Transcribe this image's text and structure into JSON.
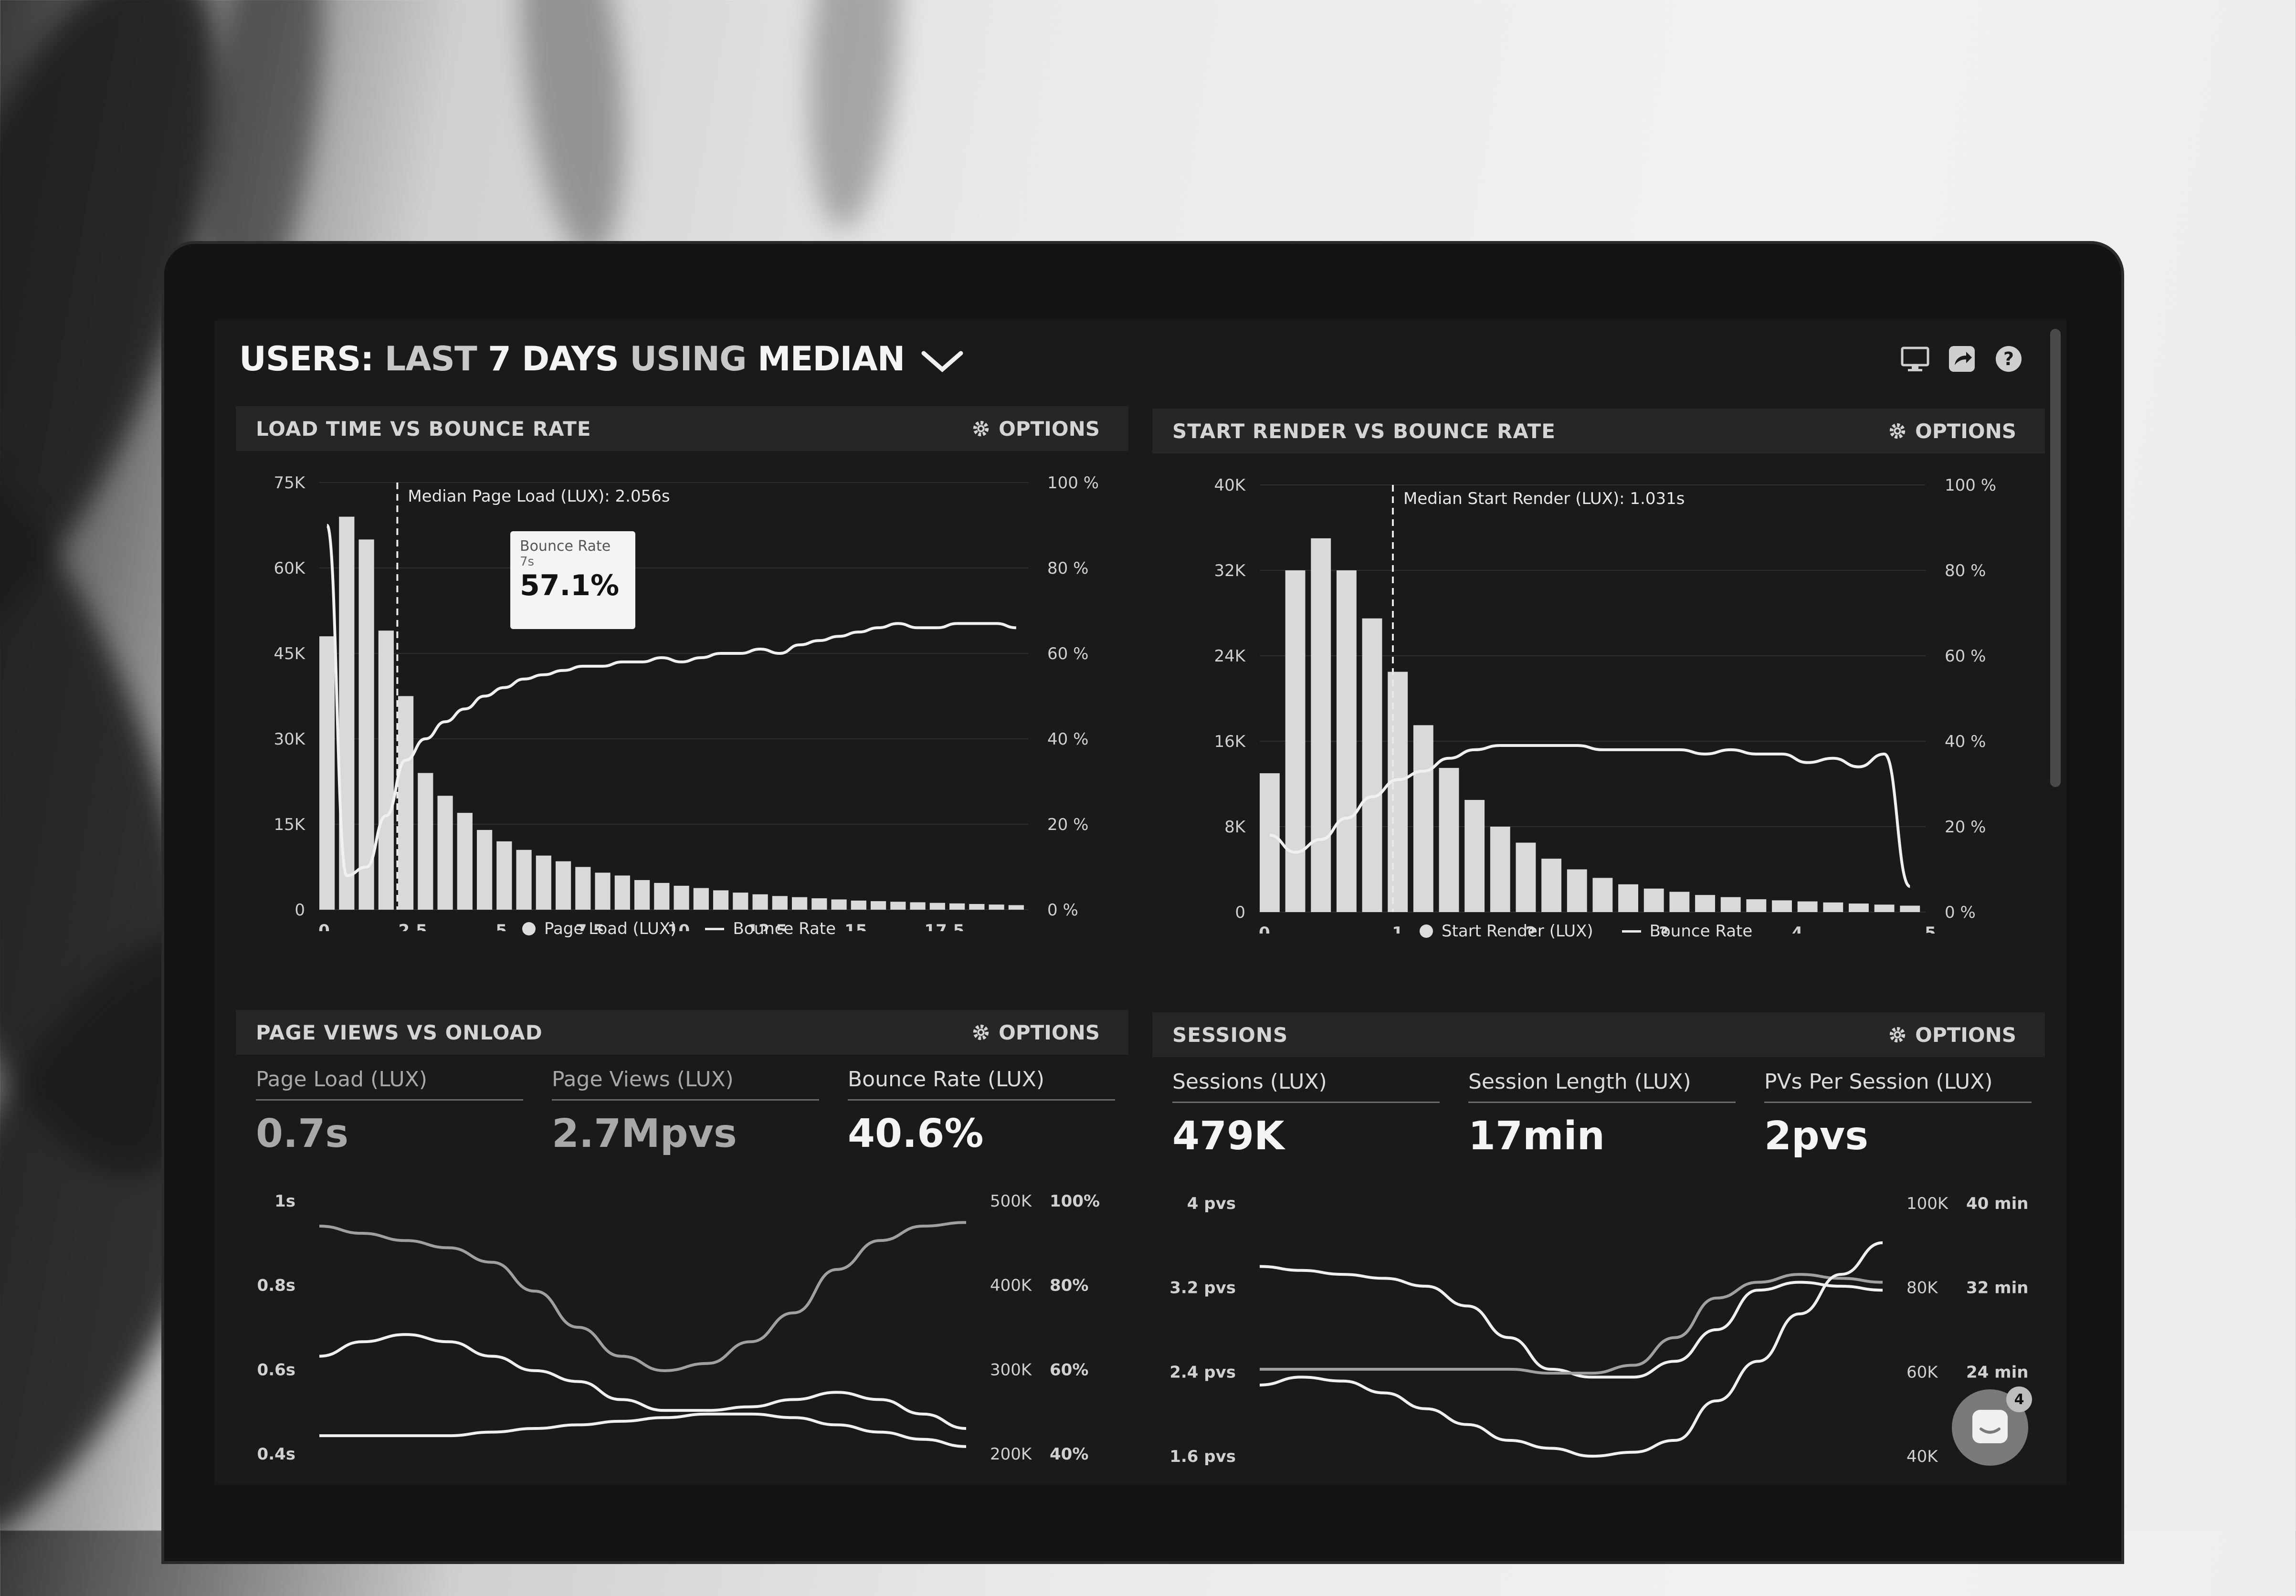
{
  "header": {
    "title_users": "USERS:",
    "title_last": "LAST",
    "title_days": "7 DAYS",
    "title_using": "USING",
    "title_median": "MEDIAN"
  },
  "icons": [
    "monitor-icon",
    "share-icon",
    "help-icon",
    "gear-icon",
    "chevron-down-icon",
    "chat-icon"
  ],
  "colors": {
    "screen_bg": "#1a1a1a",
    "panel_header": "#262626",
    "bar": "#d9d9d9",
    "line": "#f0f0f0",
    "muted_line": "#a0a0a0"
  },
  "options_label": "OPTIONS",
  "panels": {
    "load": {
      "title": "LOAD TIME VS BOUNCE RATE",
      "median_label": "Median Page Load (LUX): 2.056s",
      "legend_a": "Page Load (LUX)",
      "legend_b": "Bounce Rate",
      "y_left": [
        "75K",
        "60K",
        "45K",
        "30K",
        "15K",
        "0"
      ],
      "y_right": [
        "100 %",
        "80 %",
        "60 %",
        "40 %",
        "20 %",
        "0 %"
      ],
      "x_labels": [
        "0",
        "2.5",
        "5",
        "7.5",
        "10",
        "12.5",
        "15",
        "17.5"
      ],
      "tooltip": {
        "title": "Bounce Rate",
        "sub": "7s",
        "value": "57.1%"
      }
    },
    "render": {
      "title": "START RENDER VS BOUNCE RATE",
      "median_label": "Median Start Render (LUX): 1.031s",
      "legend_a": "Start Render (LUX)",
      "legend_b": "Bounce Rate",
      "y_left": [
        "40K",
        "32K",
        "24K",
        "16K",
        "8K",
        "0"
      ],
      "y_right": [
        "100 %",
        "80 %",
        "60 %",
        "40 %",
        "20 %",
        "0 %"
      ],
      "x_labels": [
        "0",
        "1",
        "2",
        "3",
        "4",
        "5"
      ]
    },
    "pageviews": {
      "title": "PAGE VIEWS VS ONLOAD",
      "stats": [
        {
          "label": "Page Load (LUX)",
          "value": "0.7s"
        },
        {
          "label": "Page Views (LUX)",
          "value": "2.7Mpvs"
        },
        {
          "label": "Bounce Rate (LUX)",
          "value": "40.6%"
        }
      ],
      "y_left": [
        "1s",
        "0.8s",
        "0.6s",
        "0.4s"
      ],
      "y_mid": [
        "500K",
        "400K",
        "300K",
        "200K"
      ],
      "y_right": [
        "100%",
        "80%",
        "60%",
        "40%"
      ]
    },
    "sessions": {
      "title": "SESSIONS",
      "stats": [
        {
          "label": "Sessions (LUX)",
          "value": "479K"
        },
        {
          "label": "Session Length (LUX)",
          "value": "17min"
        },
        {
          "label": "PVs Per Session (LUX)",
          "value": "2pvs"
        }
      ],
      "y_left": [
        "4 pvs",
        "3.2 pvs",
        "2.4 pvs",
        "1.6 pvs"
      ],
      "y_mid": [
        "100K",
        "80K",
        "60K",
        "40K"
      ],
      "y_right": [
        "40 min",
        "32 min",
        "24 min"
      ]
    }
  },
  "chart_data": [
    {
      "type": "bar",
      "title": "LOAD TIME VS BOUNCE RATE",
      "ylim": [
        0,
        75000
      ],
      "y2lim": [
        0,
        100
      ],
      "series": [
        {
          "name": "Page Load (LUX)",
          "kind": "bar",
          "values": [
            48000,
            69000,
            65000,
            49000,
            37500,
            24000,
            20000,
            17000,
            14000,
            12000,
            10500,
            9500,
            8500,
            7500,
            6500,
            6000,
            5200,
            4700,
            4200,
            3800,
            3400,
            3000,
            2700,
            2400,
            2200,
            2000,
            1800,
            1600,
            1500,
            1400,
            1300,
            1200,
            1100,
            1000,
            900,
            800
          ]
        },
        {
          "name": "Bounce Rate",
          "kind": "line",
          "values": [
            90,
            8,
            10,
            22,
            35,
            40,
            44,
            47,
            50,
            52,
            54,
            55,
            56,
            57,
            57,
            58,
            58,
            59,
            58,
            59,
            60,
            60,
            61,
            60,
            62,
            63,
            64,
            65,
            66,
            67,
            66,
            66,
            67,
            67,
            67,
            66
          ]
        }
      ]
    },
    {
      "type": "bar",
      "title": "START RENDER VS BOUNCE RATE",
      "ylim": [
        0,
        40000
      ],
      "y2lim": [
        0,
        100
      ],
      "series": [
        {
          "name": "Start Render (LUX)",
          "kind": "bar",
          "values": [
            13000,
            32000,
            35000,
            32000,
            27500,
            22500,
            17500,
            13500,
            10500,
            8000,
            6500,
            5000,
            4000,
            3200,
            2600,
            2200,
            1900,
            1600,
            1400,
            1200,
            1100,
            1000,
            900,
            800,
            700,
            600
          ]
        },
        {
          "name": "Bounce Rate",
          "kind": "line",
          "values": [
            18,
            14,
            17,
            22,
            27,
            31,
            33,
            36,
            38,
            39,
            39,
            39,
            39,
            38,
            38,
            38,
            38,
            37,
            38,
            37,
            37,
            35,
            36,
            34,
            37,
            6
          ]
        }
      ]
    },
    {
      "type": "line",
      "title": "PAGE VIEWS VS ONLOAD",
      "series": [
        {
          "values": [
            0.62,
            0.66,
            0.68,
            0.66,
            0.62,
            0.58,
            0.55,
            0.5,
            0.47,
            0.47,
            0.48,
            0.5,
            0.52,
            0.5,
            0.46,
            0.42
          ]
        },
        {
          "values": [
            0.98,
            0.96,
            0.94,
            0.92,
            0.88,
            0.8,
            0.7,
            0.62,
            0.58,
            0.6,
            0.66,
            0.74,
            0.86,
            0.94,
            0.98,
            0.99
          ]
        },
        {
          "values": [
            0.4,
            0.4,
            0.4,
            0.4,
            0.41,
            0.42,
            0.43,
            0.44,
            0.45,
            0.46,
            0.46,
            0.45,
            0.43,
            0.41,
            0.39,
            0.37
          ]
        }
      ]
    },
    {
      "type": "line",
      "title": "SESSIONS",
      "series": [
        {
          "values": [
            3.2,
            3.15,
            3.1,
            3.05,
            2.95,
            2.7,
            2.3,
            1.9,
            1.8,
            1.8,
            2.0,
            2.4,
            2.9,
            3.0,
            2.95,
            2.9
          ]
        },
        {
          "values": [
            1.9,
            1.9,
            1.9,
            1.9,
            1.9,
            1.9,
            1.9,
            1.85,
            1.85,
            1.95,
            2.3,
            2.8,
            3.0,
            3.1,
            3.05,
            3.0
          ]
        },
        {
          "values": [
            1.7,
            1.8,
            1.75,
            1.6,
            1.4,
            1.2,
            1.0,
            0.9,
            0.8,
            0.85,
            1.0,
            1.5,
            2.0,
            2.6,
            3.1,
            3.5
          ]
        }
      ]
    }
  ]
}
